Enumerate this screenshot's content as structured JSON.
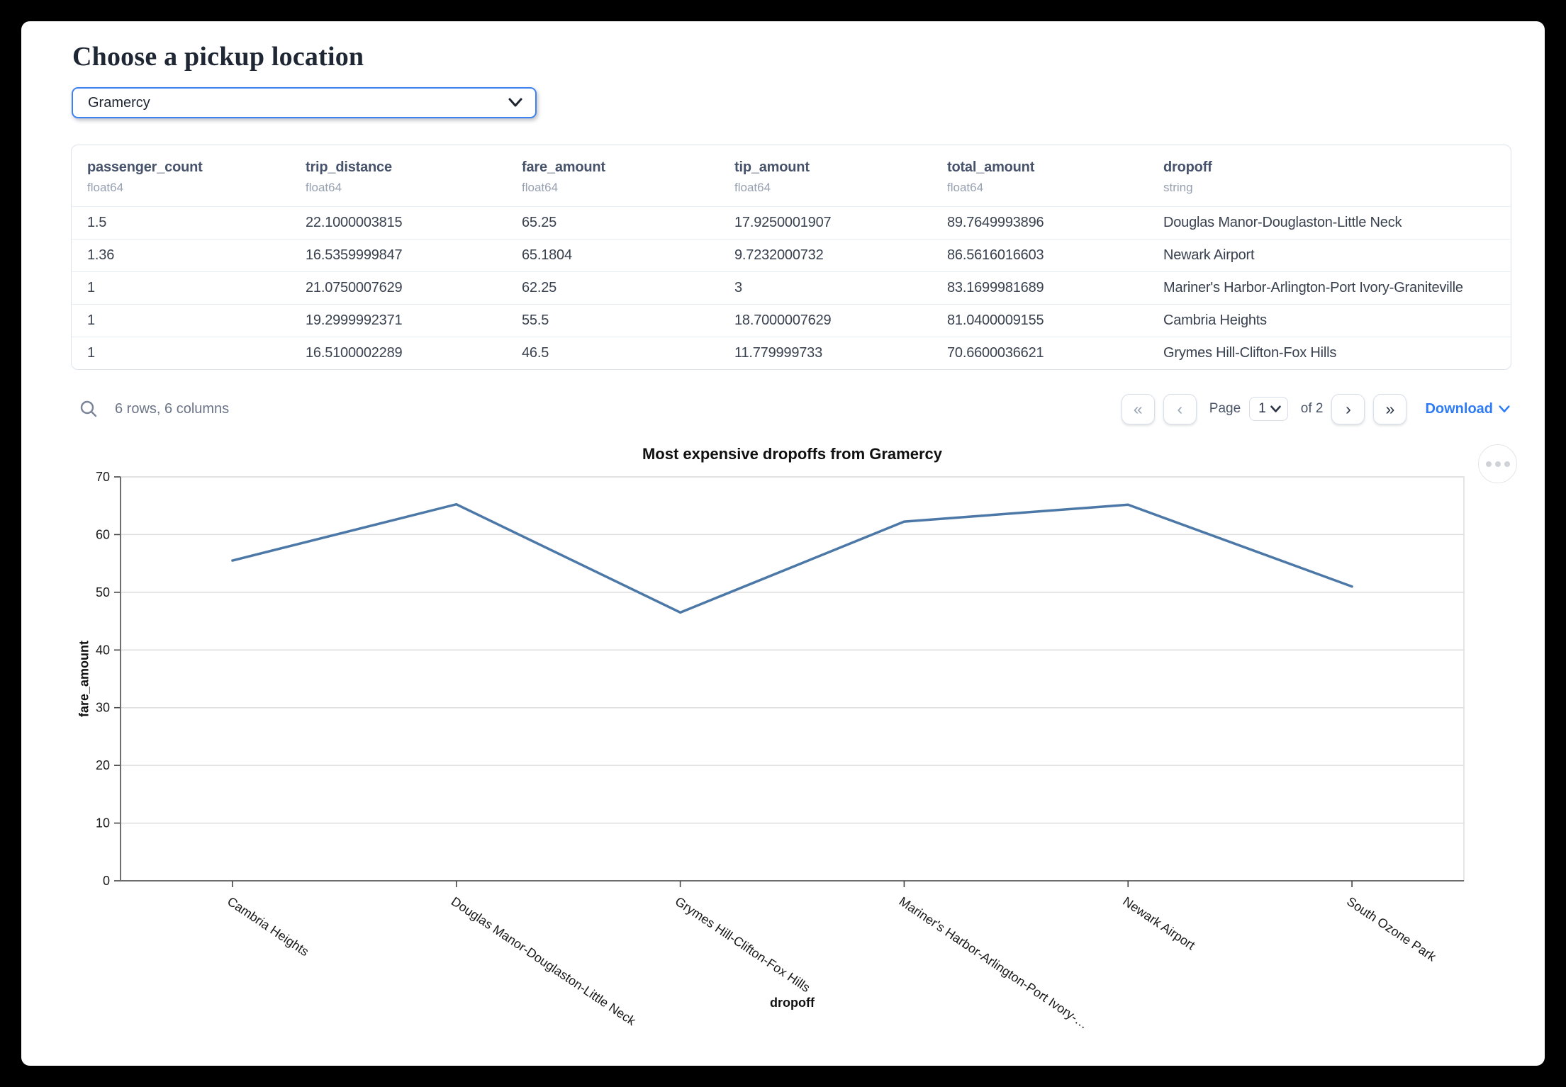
{
  "page": {
    "title": "Choose a pickup location"
  },
  "picker": {
    "value": "Gramercy"
  },
  "colors": {
    "accent": "#3d82f0",
    "link": "#2e7bf6",
    "line": "#4c78a8"
  },
  "icons": {
    "first_page": "«",
    "prev_page": "‹",
    "next_page": "›",
    "last_page": "»",
    "search": "search-icon",
    "chevron_down": "chevron-down-icon",
    "menu": "ellipsis-menu-icon"
  },
  "table": {
    "columns": [
      {
        "name": "passenger_count",
        "dtype": "float64"
      },
      {
        "name": "trip_distance",
        "dtype": "float64"
      },
      {
        "name": "fare_amount",
        "dtype": "float64"
      },
      {
        "name": "tip_amount",
        "dtype": "float64"
      },
      {
        "name": "total_amount",
        "dtype": "float64"
      },
      {
        "name": "dropoff",
        "dtype": "string"
      }
    ],
    "rows": [
      [
        "1.5",
        "22.1000003815",
        "65.25",
        "17.9250001907",
        "89.7649993896",
        "Douglas Manor-Douglaston-Little Neck"
      ],
      [
        "1.36",
        "16.5359999847",
        "65.1804",
        "9.7232000732",
        "86.5616016603",
        "Newark Airport"
      ],
      [
        "1",
        "21.0750007629",
        "62.25",
        "3",
        "83.1699981689",
        "Mariner's Harbor-Arlington-Port Ivory-Graniteville"
      ],
      [
        "1",
        "19.2999992371",
        "55.5",
        "18.7000007629",
        "81.0400009155",
        "Cambria Heights"
      ],
      [
        "1",
        "16.5100002289",
        "46.5",
        "11.779999733",
        "70.6600036621",
        "Grymes Hill-Clifton-Fox Hills"
      ]
    ],
    "footer": {
      "summary": "6 rows, 6 columns"
    },
    "pagination": {
      "page_label": "Page",
      "page_value": "1",
      "of_label": "of 2",
      "download_label": "Download"
    }
  },
  "chart_data": {
    "type": "line",
    "title": "Most expensive dropoffs from Gramercy",
    "xlabel": "dropoff",
    "ylabel": "fare_amount",
    "categories": [
      "Cambria Heights",
      "Douglas Manor-Douglaston-Little Neck",
      "Grymes Hill-Clifton-Fox Hills",
      "Mariner's Harbor-Arlington-Port Ivory-…",
      "Newark Airport",
      "South Ozone Park"
    ],
    "values": [
      55.5,
      65.25,
      46.5,
      62.25,
      65.18,
      51
    ],
    "ylim": [
      0,
      70
    ],
    "ytick_step": 10,
    "grid": true,
    "legend": "none",
    "line_color": "#4c78a8"
  }
}
